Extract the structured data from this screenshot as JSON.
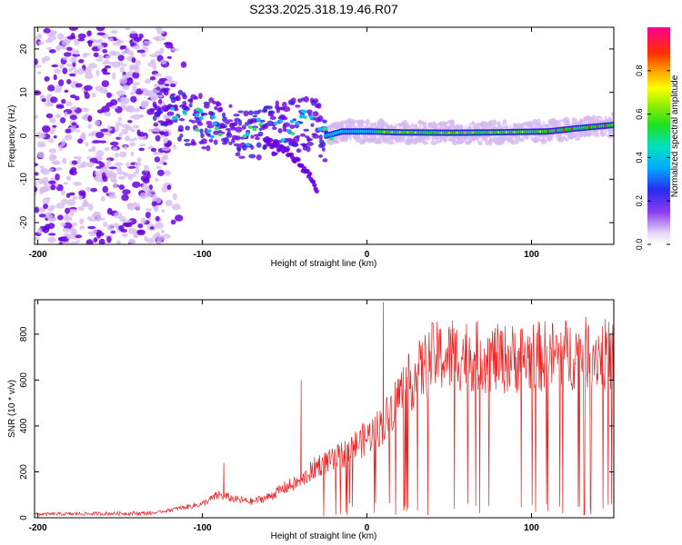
{
  "title": "S233.2025.318.19.46.R07",
  "colors": {
    "snr_line": "#ee2222",
    "speckle_light": "#d4b8f0",
    "speckle_dark": "#6a00e0",
    "axis": "#000000"
  },
  "chart_data": [
    {
      "type": "heatmap",
      "name": "spectrogram",
      "xlabel": "Height of straight line (km)",
      "ylabel": "Frequency (Hz)",
      "xlim": [
        -202,
        150
      ],
      "ylim": [
        -25,
        25
      ],
      "x_ticks": [
        -200,
        -100,
        0,
        100
      ],
      "y_ticks": [
        -20,
        -10,
        0,
        10,
        20
      ],
      "colorbar": {
        "label": "Normalized spectral amplitude",
        "range": [
          0,
          1
        ],
        "ticks": [
          0.0,
          0.2,
          0.4,
          0.6,
          0.8
        ],
        "tick_labels": [
          "0.0",
          "0.2",
          "0.4",
          "0.6",
          "0.8"
        ]
      },
      "features": {
        "noise_region_x": [
          -202,
          -120
        ],
        "main_trace": {
          "x": [
            -130,
            -110,
            -90,
            -70,
            -50,
            -35,
            -25,
            -15,
            0,
            20,
            50,
            80,
            110,
            130,
            150
          ],
          "y": [
            6,
            4,
            2,
            0.5,
            2,
            3,
            0,
            1,
            1,
            0.8,
            0.7,
            0.8,
            1,
            1.8,
            2.5
          ]
        },
        "descending_branch": {
          "x": [
            -62,
            -52,
            -42,
            -33,
            -30
          ],
          "y": [
            -1,
            -3,
            -6,
            -10,
            -13
          ]
        }
      }
    },
    {
      "type": "line",
      "name": "snr",
      "xlabel": "Height of straight line (km)",
      "ylabel": "SNR (10 * v/v)",
      "xlim": [
        -202,
        150
      ],
      "ylim": [
        0,
        950
      ],
      "x_ticks": [
        -200,
        -100,
        0,
        100
      ],
      "y_ticks": [
        0,
        200,
        400,
        600,
        800
      ],
      "envelope": {
        "x": [
          -202,
          -130,
          -115,
          -100,
          -90,
          -80,
          -70,
          -60,
          -50,
          -40,
          -30,
          -20,
          -10,
          0,
          10,
          20,
          30,
          40,
          50,
          60,
          80,
          100,
          120,
          140,
          150
        ],
        "y": [
          15,
          20,
          40,
          60,
          100,
          80,
          70,
          90,
          130,
          160,
          230,
          250,
          300,
          350,
          410,
          540,
          620,
          700,
          700,
          710,
          690,
          700,
          710,
          720,
          700
        ]
      },
      "spikes": [
        {
          "x": 10,
          "y": 940
        },
        {
          "x": -87,
          "y": 240
        },
        {
          "x": -40,
          "y": 600
        },
        {
          "x": 52,
          "y": 860
        }
      ]
    }
  ]
}
